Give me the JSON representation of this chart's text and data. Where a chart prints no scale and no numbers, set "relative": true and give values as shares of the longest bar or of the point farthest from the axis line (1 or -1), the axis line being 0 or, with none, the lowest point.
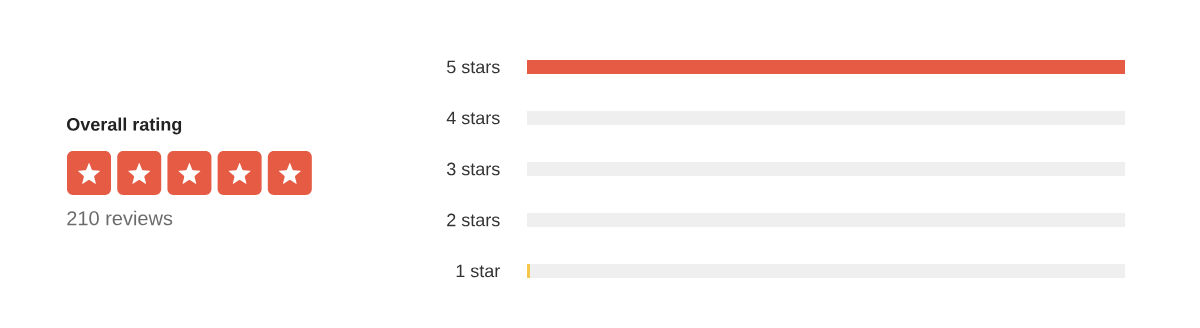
{
  "chart_data": {
    "type": "bar",
    "orientation": "horizontal",
    "relative": true,
    "stacked": true,
    "categories": [
      "5 stars",
      "4 stars",
      "3 stars",
      "2 stars",
      "1 star"
    ],
    "series": [
      {
        "colors": [
          "#e55b44",
          "#e55b44",
          "#e55b44",
          "#e55b44",
          "#f5c84c"
        ],
        "values": [
          1,
          0,
          0,
          0,
          0.005
        ]
      },
      {
        "color": "#efefef",
        "values": [
          0,
          1,
          1,
          1,
          0.995
        ]
      }
    ],
    "annotations": [
      "Overall rating",
      "210 reviews"
    ]
  }
}
